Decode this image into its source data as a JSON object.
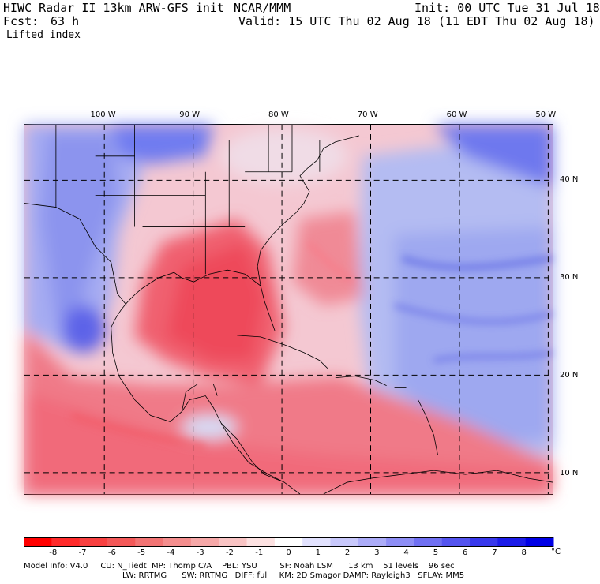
{
  "header": {
    "model_title": "HIWC Radar II 13km ARW-GFS init",
    "org": "NCAR/MMM",
    "init": "Init: 00 UTC Tue 31 Jul 18",
    "fcst_label": "Fcst:",
    "fcst_value": "63 h",
    "valid": "Valid: 15 UTC Thu 02 Aug 18 (11 EDT Thu 02 Aug 18)",
    "field": "Lifted index"
  },
  "axes": {
    "lon_labels": [
      "100 W",
      "90 W",
      "80 W",
      "70 W",
      "60 W",
      "50 W"
    ],
    "lon_values": [
      -100,
      -90,
      -80,
      -70,
      -60,
      -50
    ],
    "lat_labels": [
      "40 N",
      "30 N",
      "20 N",
      "10 N"
    ],
    "lat_values": [
      40,
      30,
      20,
      10
    ],
    "lon_range": [
      -109,
      -49.5
    ],
    "lat_range": [
      7.8,
      45.7
    ],
    "grid": "dashed"
  },
  "colorbar": {
    "ticks": [
      "-8",
      "-7",
      "-6",
      "-5",
      "-4",
      "-3",
      "-2",
      "-1",
      "0",
      "1",
      "2",
      "3",
      "4",
      "5",
      "6",
      "7",
      "8"
    ],
    "unit": "°C",
    "range": [
      -9,
      9
    ],
    "colors": [
      "#ff0000",
      "#ff2a2a",
      "#f84040",
      "#f35858",
      "#f27474",
      "#f48e8e",
      "#f6a8a8",
      "#f9c4c4",
      "#fde2e2",
      "#ffffff",
      "#e2e2fe",
      "#c8c8fb",
      "#acacf8",
      "#8e8ef5",
      "#7070f2",
      "#5454ef",
      "#3838ec",
      "#1c1ce9",
      "#0000e6"
    ]
  },
  "footer": {
    "line1": "Model Info: V4.0     CU: N_Tiedt  MP: Thomp C/A    PBL: YSU         SF: Noah LSM      13 km    51 levels    96 sec",
    "line2": "LW: RRTMG      SW: RRTMG   DIFF: full    KM: 2D Smagor DAMP: Rayleigh3   SFLAY: MM5"
  }
}
